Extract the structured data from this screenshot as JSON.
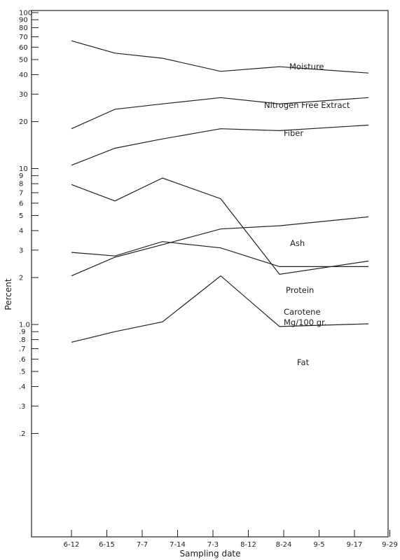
{
  "chart_data": {
    "type": "line",
    "xlabel": "Sampling date",
    "ylabel": "Percent",
    "y_scale": "log",
    "ylim": [
      0.15,
      100
    ],
    "grid": false,
    "legend": "none",
    "x_tick_labels": [
      "6-12",
      "6-15",
      "7-7",
      "7-14",
      "7-3",
      "8-12",
      "8-24",
      "9-5",
      "9-17",
      "9-29"
    ],
    "y_tick_labels": [
      {
        "value": 100,
        "label": "100"
      },
      {
        "value": 90,
        "label": "90"
      },
      {
        "value": 80,
        "label": "80"
      },
      {
        "value": 70,
        "label": "70"
      },
      {
        "value": 60,
        "label": "60"
      },
      {
        "value": 50,
        "label": "50"
      },
      {
        "value": 40,
        "label": "40"
      },
      {
        "value": 30,
        "label": "30"
      },
      {
        "value": 20,
        "label": "20"
      },
      {
        "value": 10,
        "label": "10"
      },
      {
        "value": 9,
        "label": "9"
      },
      {
        "value": 8,
        "label": "8"
      },
      {
        "value": 7,
        "label": "7"
      },
      {
        "value": 6,
        "label": "6"
      },
      {
        "value": 5,
        "label": "5"
      },
      {
        "value": 4,
        "label": "4"
      },
      {
        "value": 3,
        "label": "3"
      },
      {
        "value": 2,
        "label": "2"
      },
      {
        "value": 1.0,
        "label": "1.0"
      },
      {
        "value": 0.9,
        "label": ".9"
      },
      {
        "value": 0.8,
        "label": ".8"
      },
      {
        "value": 0.7,
        "label": ".7"
      },
      {
        "value": 0.6,
        "label": ".6"
      },
      {
        "value": 0.5,
        "label": ".5"
      },
      {
        "value": 0.4,
        "label": ".4"
      },
      {
        "value": 0.3,
        "label": ".3"
      },
      {
        "value": 0.2,
        "label": ".2"
      }
    ],
    "series": [
      {
        "name": "Moisture",
        "x": [
          0,
          1,
          2,
          3,
          4,
          5
        ],
        "y": [
          66,
          55,
          51,
          42,
          45,
          41
        ]
      },
      {
        "name": "Nitrogen Free Extract",
        "x": [
          0,
          1,
          2,
          3,
          4,
          5
        ],
        "y": [
          18,
          24,
          26,
          28.5,
          26,
          28.5
        ]
      },
      {
        "name": "Fiber",
        "x": [
          0,
          1,
          2,
          3,
          4,
          5
        ],
        "y": [
          10.5,
          13.5,
          15.5,
          18,
          17.5,
          19
        ]
      },
      {
        "name": "Ash",
        "x": [
          0,
          1,
          2,
          3,
          4,
          5
        ],
        "y": [
          2.05,
          2.7,
          3.25,
          4.1,
          4.3,
          4.9
        ]
      },
      {
        "name": "Protein",
        "x": [
          0,
          1,
          2,
          3,
          4,
          5
        ],
        "y": [
          2.9,
          2.75,
          3.4,
          3.1,
          2.35,
          2.35
        ]
      },
      {
        "name": "Carotene Mg/100 gr.",
        "x": [
          0,
          1,
          2,
          3,
          4,
          5
        ],
        "y": [
          7.9,
          6.2,
          8.7,
          6.4,
          2.1,
          2.55
        ]
      },
      {
        "name": "Fat",
        "x": [
          0,
          1,
          2,
          3,
          4,
          5
        ],
        "y": [
          0.77,
          0.9,
          1.04,
          2.05,
          0.97,
          1.01
        ]
      }
    ],
    "series_labels": [
      {
        "lines": [
          "Moisture"
        ]
      },
      {
        "lines": [
          "Nitrogen Free Extract"
        ]
      },
      {
        "lines": [
          "Fiber"
        ]
      },
      {
        "lines": [
          "Ash"
        ]
      },
      {
        "lines": [
          "Protein"
        ]
      },
      {
        "lines": [
          "Carotene",
          "Mg/100 gr."
        ]
      },
      {
        "lines": [
          "Fat"
        ]
      }
    ]
  }
}
